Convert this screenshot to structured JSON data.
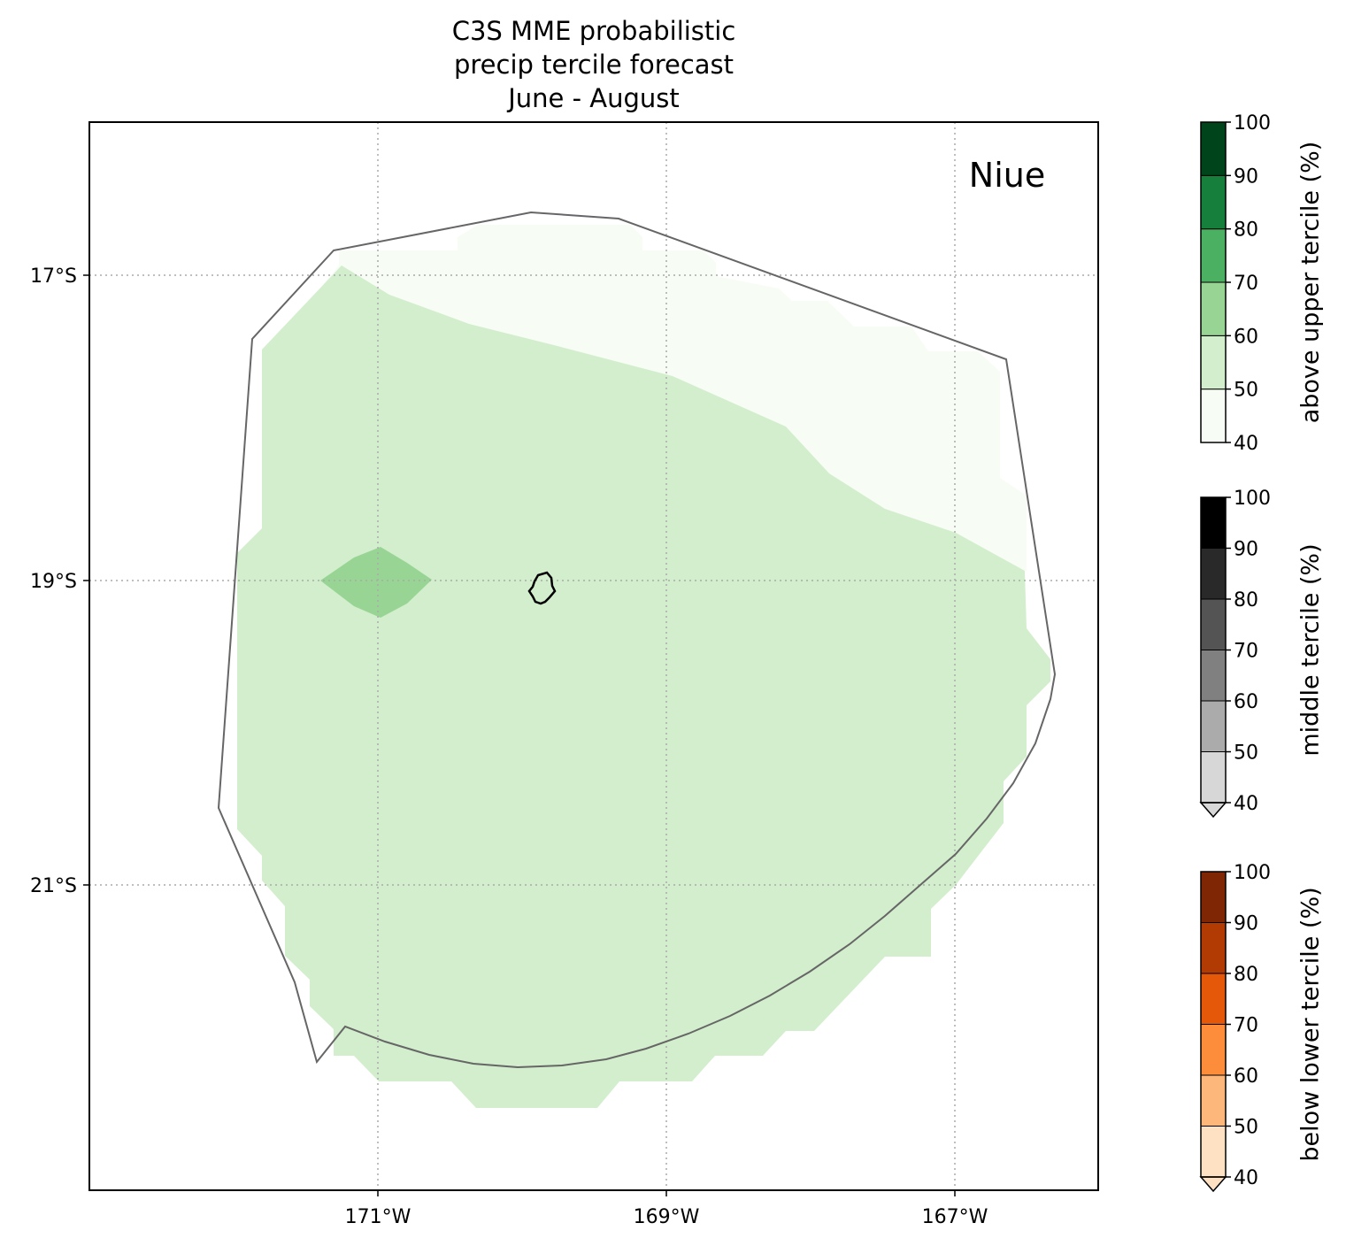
{
  "title": {
    "line1": "C3S MME probabilistic",
    "line2": "precip tercile forecast",
    "line3": "June - August"
  },
  "region_label": "Niue",
  "axes": {
    "lon_ticks": [
      "171°W",
      "169°W",
      "167°W"
    ],
    "lat_ticks": [
      "17°S",
      "19°S",
      "21°S"
    ],
    "gridlines": "dotted grey"
  },
  "colorbars": [
    {
      "label": "above upper tercile (%)",
      "ticks": [
        "40",
        "50",
        "60",
        "70",
        "80",
        "90",
        "100"
      ],
      "colors": [
        "#f7fcf5",
        "#d3eecd",
        "#98d594",
        "#4bb062",
        "#157f3b",
        "#00441b"
      ],
      "extend_min": false
    },
    {
      "label": "middle tercile (%)",
      "ticks": [
        "40",
        "50",
        "60",
        "70",
        "80",
        "90",
        "100"
      ],
      "colors": [
        "#d7d7d7",
        "#ababab",
        "#808080",
        "#545454",
        "#292929",
        "#000000"
      ],
      "extend_min": true
    },
    {
      "label": "below lower tercile (%)",
      "ticks": [
        "40",
        "50",
        "60",
        "70",
        "80",
        "90",
        "100"
      ],
      "colors": [
        "#fee0c3",
        "#fdb77a",
        "#fd8c3b",
        "#e5580a",
        "#b13b02",
        "#7f2704"
      ],
      "extend_min": true
    }
  ],
  "forecast_fields": [
    {
      "category": "above upper tercile",
      "bin": "40-50",
      "color": "#f7fcf5"
    },
    {
      "category": "above upper tercile",
      "bin": "50-60",
      "color": "#d3eecd"
    },
    {
      "category": "above upper tercile",
      "bin": "60-70",
      "color": "#98d594"
    }
  ],
  "colors": {
    "eez_outline": "#666666",
    "island_outline": "#000000",
    "gridline": "#aaaaaa"
  }
}
